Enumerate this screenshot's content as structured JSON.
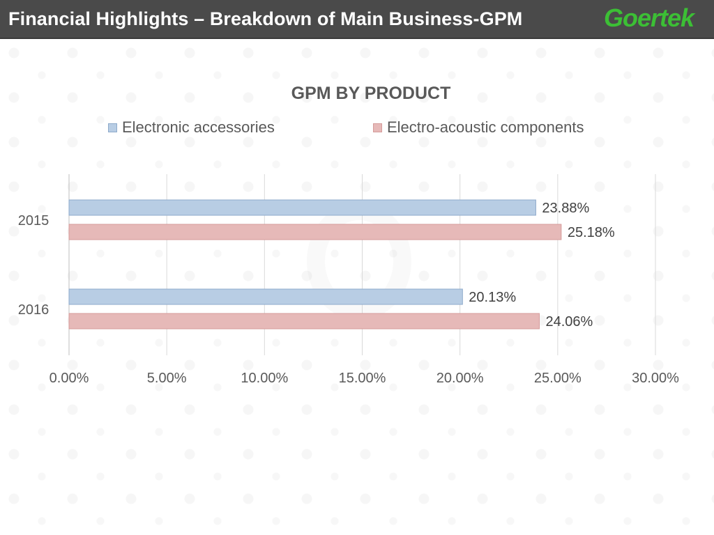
{
  "header": {
    "title": "Financial Highlights – Breakdown of Main Business-GPM",
    "logo_text": "Goertek",
    "background_color": "#4a4a4a",
    "logo_color": "#3cbf35"
  },
  "chart_data": {
    "type": "bar",
    "orientation": "horizontal",
    "title": "GPM BY PRODUCT",
    "categories": [
      "2015",
      "2016"
    ],
    "series": [
      {
        "name": "Electronic accessories",
        "values": [
          23.88,
          20.13
        ],
        "labels": [
          "23.88%",
          "20.13%"
        ],
        "color": "#b8cde4",
        "border": "#8eaacb"
      },
      {
        "name": "Electro-acoustic components",
        "values": [
          25.18,
          24.06
        ],
        "labels": [
          "25.18%",
          "24.06%"
        ],
        "color": "#e6b9b8",
        "border": "#d59b9a"
      }
    ],
    "xlim": [
      0,
      30
    ],
    "x_ticks": [
      "0.00%",
      "5.00%",
      "10.00%",
      "15.00%",
      "20.00%",
      "25.00%",
      "30.00%"
    ],
    "grid": true,
    "legend_position": "top"
  }
}
